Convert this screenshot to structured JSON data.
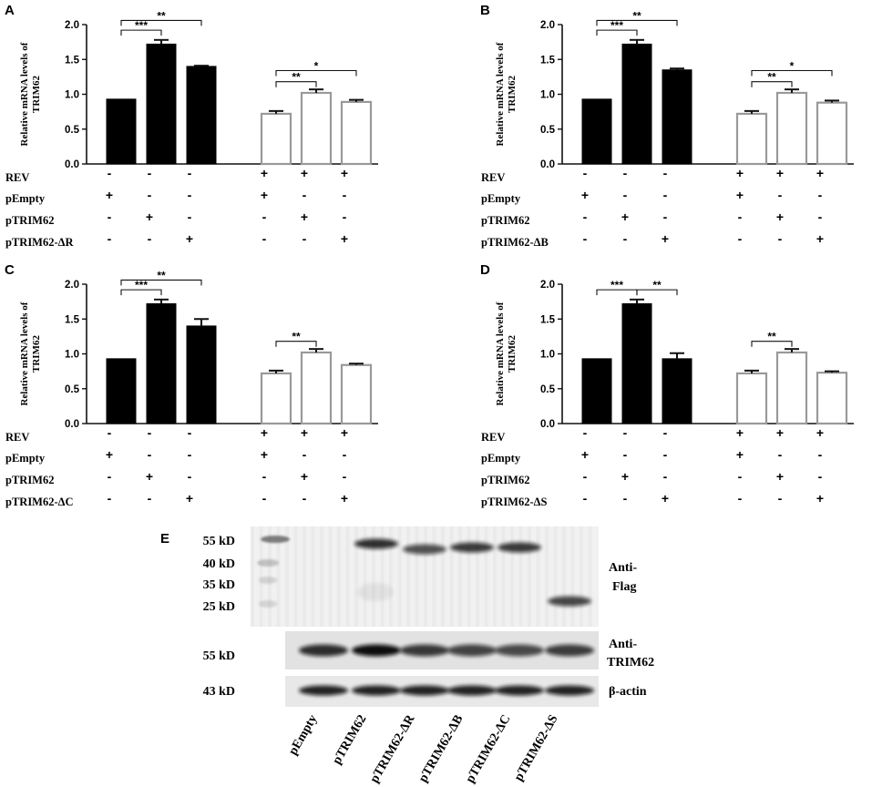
{
  "panels_meta": {
    "condition_labels": [
      "REV",
      "pEmpty",
      "pTRIM62"
    ],
    "filled_color": "#000000",
    "open_color": "#ffffff",
    "open_stroke": "#999999"
  },
  "chart_data": [
    {
      "type": "bar",
      "panel": "A",
      "ylabel": "Relative mRNA levels of TRIM62",
      "ylim": [
        0,
        2.0
      ],
      "yticks": [
        "0.0",
        "0.5",
        "1.0",
        "1.5",
        "2.0"
      ],
      "values": [
        0.93,
        1.72,
        1.4,
        0.72,
        1.02,
        0.89
      ],
      "errors": [
        0.0,
        0.06,
        0.01,
        0.04,
        0.05,
        0.03
      ],
      "fill": [
        "filled",
        "filled",
        "filled",
        "open",
        "open",
        "open"
      ],
      "rows": [
        {
          "label": "REV",
          "signs": [
            "-",
            "-",
            "-",
            "+",
            "+",
            "+"
          ]
        },
        {
          "label": "pEmpty",
          "signs": [
            "+",
            "-",
            "-",
            "+",
            "-",
            "-"
          ]
        },
        {
          "label": "pTRIM62",
          "signs": [
            "-",
            "+",
            "-",
            "-",
            "+",
            "-"
          ]
        },
        {
          "label": "pTRIM62-ΔR",
          "signs": [
            "-",
            "-",
            "+",
            "-",
            "-",
            "+"
          ]
        }
      ],
      "brackets": [
        {
          "from": 0,
          "to": 1,
          "text": "***",
          "level": 1.92
        },
        {
          "from": 0,
          "to": 2,
          "text": "**",
          "level": 2.06
        },
        {
          "from": 3,
          "to": 4,
          "text": "**",
          "level": 1.18
        },
        {
          "from": 3,
          "to": 5,
          "text": "*",
          "level": 1.34
        }
      ]
    },
    {
      "type": "bar",
      "panel": "B",
      "ylabel": "Relative mRNA levels of TRIM62",
      "ylim": [
        0,
        2.0
      ],
      "yticks": [
        "0.0",
        "0.5",
        "1.0",
        "1.5",
        "2.0"
      ],
      "values": [
        0.93,
        1.72,
        1.35,
        0.72,
        1.02,
        0.88
      ],
      "errors": [
        0.0,
        0.06,
        0.02,
        0.04,
        0.05,
        0.03
      ],
      "fill": [
        "filled",
        "filled",
        "filled",
        "open",
        "open",
        "open"
      ],
      "rows": [
        {
          "label": "REV",
          "signs": [
            "-",
            "-",
            "-",
            "+",
            "+",
            "+"
          ]
        },
        {
          "label": "pEmpty",
          "signs": [
            "+",
            "-",
            "-",
            "+",
            "-",
            "-"
          ]
        },
        {
          "label": "pTRIM62",
          "signs": [
            "-",
            "+",
            "-",
            "-",
            "+",
            "-"
          ]
        },
        {
          "label": "pTRIM62-ΔB",
          "signs": [
            "-",
            "-",
            "+",
            "-",
            "-",
            "+"
          ]
        }
      ],
      "brackets": [
        {
          "from": 0,
          "to": 1,
          "text": "***",
          "level": 1.92
        },
        {
          "from": 0,
          "to": 2,
          "text": "**",
          "level": 2.06
        },
        {
          "from": 3,
          "to": 4,
          "text": "**",
          "level": 1.18
        },
        {
          "from": 3,
          "to": 5,
          "text": "*",
          "level": 1.34
        }
      ]
    },
    {
      "type": "bar",
      "panel": "C",
      "ylabel": "Relative mRNA levels of TRIM62",
      "ylim": [
        0,
        2.0
      ],
      "yticks": [
        "0.0",
        "0.5",
        "1.0",
        "1.5",
        "2.0"
      ],
      "values": [
        0.93,
        1.72,
        1.4,
        0.72,
        1.02,
        0.84
      ],
      "errors": [
        0.0,
        0.06,
        0.1,
        0.04,
        0.05,
        0.02
      ],
      "fill": [
        "filled",
        "filled",
        "filled",
        "open",
        "open",
        "open"
      ],
      "rows": [
        {
          "label": "REV",
          "signs": [
            "-",
            "-",
            "-",
            "+",
            "+",
            "+"
          ]
        },
        {
          "label": "pEmpty",
          "signs": [
            "+",
            "-",
            "-",
            "+",
            "-",
            "-"
          ]
        },
        {
          "label": "pTRIM62",
          "signs": [
            "-",
            "+",
            "-",
            "-",
            "+",
            "-"
          ]
        },
        {
          "label": "pTRIM62-ΔC",
          "signs": [
            "-",
            "-",
            "+",
            "-",
            "-",
            "+"
          ]
        }
      ],
      "brackets": [
        {
          "from": 0,
          "to": 1,
          "text": "***",
          "level": 1.92
        },
        {
          "from": 0,
          "to": 2,
          "text": "**",
          "level": 2.06
        },
        {
          "from": 3,
          "to": 4,
          "text": "**",
          "level": 1.18
        }
      ]
    },
    {
      "type": "bar",
      "panel": "D",
      "ylabel": "Relative mRNA levels of TRIM62",
      "ylim": [
        0,
        2.0
      ],
      "yticks": [
        "0.0",
        "0.5",
        "1.0",
        "1.5",
        "2.0"
      ],
      "values": [
        0.93,
        1.72,
        0.93,
        0.72,
        1.02,
        0.73
      ],
      "errors": [
        0.0,
        0.06,
        0.08,
        0.04,
        0.05,
        0.02
      ],
      "fill": [
        "filled",
        "filled",
        "filled",
        "open",
        "open",
        "open"
      ],
      "rows": [
        {
          "label": "REV",
          "signs": [
            "-",
            "-",
            "-",
            "+",
            "+",
            "+"
          ]
        },
        {
          "label": "pEmpty",
          "signs": [
            "+",
            "-",
            "-",
            "+",
            "-",
            "-"
          ]
        },
        {
          "label": "pTRIM62",
          "signs": [
            "-",
            "+",
            "-",
            "-",
            "+",
            "-"
          ]
        },
        {
          "label": "pTRIM62-ΔS",
          "signs": [
            "-",
            "-",
            "+",
            "-",
            "-",
            "+"
          ]
        }
      ],
      "brackets": [
        {
          "from": 0,
          "to": 1,
          "text": "***",
          "level": 1.92
        },
        {
          "from": 1,
          "to": 2,
          "text": "**",
          "level": 1.92
        },
        {
          "from": 3,
          "to": 4,
          "text": "**",
          "level": 1.18
        }
      ]
    }
  ],
  "blot": {
    "panel": "E",
    "top_markers": [
      "55 kD",
      "40 kD",
      "35 kD",
      "25 kD"
    ],
    "middle_marker": "55 kD",
    "bottom_marker": "43 kD",
    "top_label": "Anti-Flag",
    "middle_label": "Anti-TRIM62",
    "bottom_label": "β-actin",
    "lanes": [
      "pEmpty",
      "pTRIM62",
      "pTRIM62-ΔR",
      "pTRIM62-ΔB",
      "pTRIM62-ΔC",
      "pTRIM62-ΔS"
    ],
    "flag_band_intensity": [
      0.0,
      0.85,
      0.7,
      0.8,
      0.8,
      0.75
    ]
  }
}
